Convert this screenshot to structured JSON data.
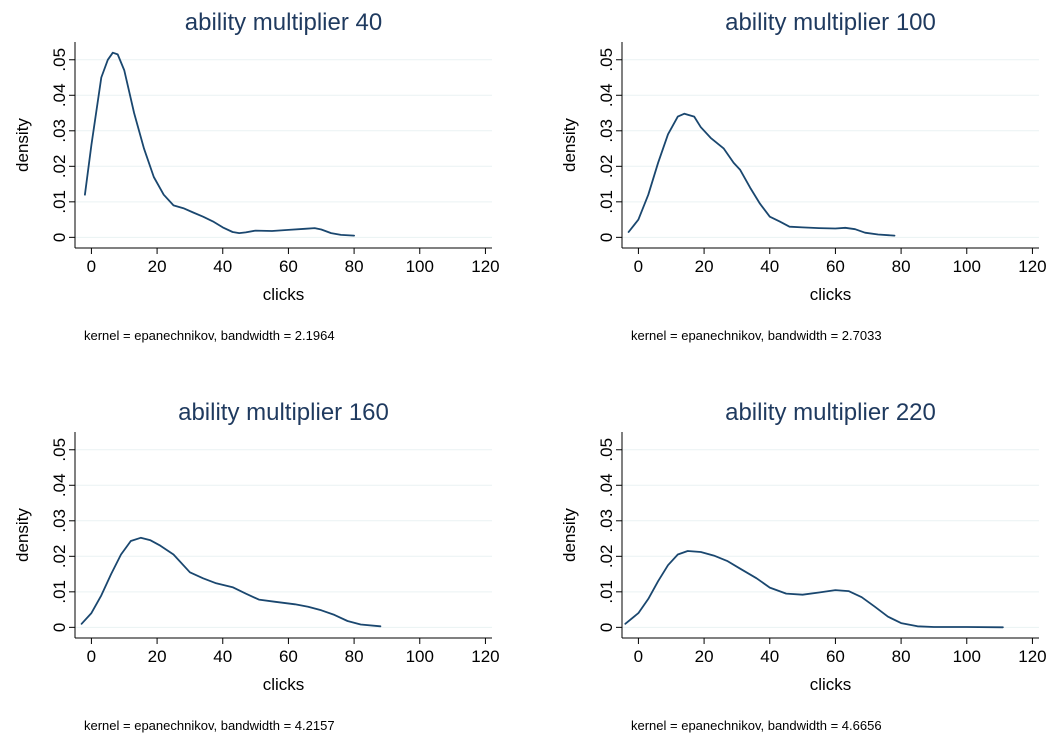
{
  "line_color": "#1a476f",
  "title_color": "#1f3a5f",
  "grid_color": "#eaf2f3",
  "chart_data": [
    {
      "type": "line",
      "title": "ability multiplier 40",
      "xlabel": "clicks",
      "ylabel": "density",
      "note": "kernel = epanechnikov, bandwidth = 2.1964",
      "xlim": [
        -5,
        122
      ],
      "ylim": [
        -0.003,
        0.055
      ],
      "xticks": [
        0,
        20,
        40,
        60,
        80,
        100,
        120
      ],
      "xtick_labels": [
        "0",
        "20",
        "40",
        "60",
        "80",
        "100",
        "120"
      ],
      "yticks": [
        0,
        0.01,
        0.02,
        0.03,
        0.04,
        0.05
      ],
      "ytick_labels": [
        "0",
        ".01",
        ".02",
        ".03",
        ".04",
        ".05"
      ],
      "grid": true,
      "series": [
        {
          "x": [
            -2,
            0,
            3,
            5,
            6.5,
            8,
            10,
            13,
            16,
            19,
            22,
            25,
            28,
            31,
            34,
            37,
            40,
            43,
            45,
            47,
            50,
            55,
            60,
            65,
            68,
            70,
            73,
            76,
            80
          ],
          "y": [
            0.012,
            0.026,
            0.045,
            0.05,
            0.052,
            0.0515,
            0.047,
            0.035,
            0.025,
            0.017,
            0.012,
            0.009,
            0.0082,
            0.007,
            0.0058,
            0.0045,
            0.0028,
            0.0015,
            0.0012,
            0.0014,
            0.0019,
            0.0018,
            0.0021,
            0.0024,
            0.0026,
            0.0022,
            0.0012,
            0.0007,
            0.0005
          ]
        }
      ]
    },
    {
      "type": "line",
      "title": "ability multiplier 100",
      "xlabel": "clicks",
      "ylabel": "density",
      "note": "kernel = epanechnikov, bandwidth = 2.7033",
      "xlim": [
        -5,
        122
      ],
      "ylim": [
        -0.003,
        0.055
      ],
      "xticks": [
        0,
        20,
        40,
        60,
        80,
        100,
        120
      ],
      "xtick_labels": [
        "0",
        "20",
        "40",
        "60",
        "80",
        "100",
        "120"
      ],
      "yticks": [
        0,
        0.01,
        0.02,
        0.03,
        0.04,
        0.05
      ],
      "ytick_labels": [
        "0",
        ".01",
        ".02",
        ".03",
        ".04",
        ".05"
      ],
      "grid": true,
      "series": [
        {
          "x": [
            -3,
            0,
            3,
            6,
            9,
            12,
            14,
            17,
            19,
            22,
            26,
            29,
            31,
            34,
            37,
            40,
            43,
            46,
            50,
            55,
            60,
            63,
            66,
            69,
            73,
            78
          ],
          "y": [
            0.0015,
            0.005,
            0.012,
            0.021,
            0.029,
            0.034,
            0.0348,
            0.034,
            0.031,
            0.028,
            0.025,
            0.021,
            0.019,
            0.014,
            0.0095,
            0.0058,
            0.0045,
            0.003,
            0.0028,
            0.0026,
            0.0025,
            0.0027,
            0.0023,
            0.0013,
            0.0008,
            0.0005
          ]
        }
      ]
    },
    {
      "type": "line",
      "title": "ability multiplier 160",
      "xlabel": "clicks",
      "ylabel": "density",
      "note": "kernel = epanechnikov, bandwidth = 4.2157",
      "xlim": [
        -5,
        122
      ],
      "ylim": [
        -0.003,
        0.055
      ],
      "xticks": [
        0,
        20,
        40,
        60,
        80,
        100,
        120
      ],
      "xtick_labels": [
        "0",
        "20",
        "40",
        "60",
        "80",
        "100",
        "120"
      ],
      "yticks": [
        0,
        0.01,
        0.02,
        0.03,
        0.04,
        0.05
      ],
      "ytick_labels": [
        "0",
        ".01",
        ".02",
        ".03",
        ".04",
        ".05"
      ],
      "grid": true,
      "series": [
        {
          "x": [
            -3,
            0,
            3,
            6,
            9,
            12,
            15,
            18,
            21,
            25,
            30,
            34,
            38,
            43,
            47,
            51,
            56,
            62,
            66,
            70,
            74,
            78,
            82,
            88
          ],
          "y": [
            0.001,
            0.004,
            0.009,
            0.015,
            0.0205,
            0.0243,
            0.0252,
            0.0245,
            0.023,
            0.0205,
            0.0155,
            0.0138,
            0.0124,
            0.0113,
            0.0095,
            0.0078,
            0.0072,
            0.0065,
            0.0058,
            0.0048,
            0.0035,
            0.0018,
            0.0008,
            0.0003
          ]
        }
      ]
    },
    {
      "type": "line",
      "title": "ability multiplier 220",
      "xlabel": "clicks",
      "ylabel": "density",
      "note": "kernel = epanechnikov, bandwidth = 4.6656",
      "xlim": [
        -5,
        122
      ],
      "ylim": [
        -0.003,
        0.055
      ],
      "xticks": [
        0,
        20,
        40,
        60,
        80,
        100,
        120
      ],
      "xtick_labels": [
        "0",
        "20",
        "40",
        "60",
        "80",
        "100",
        "120"
      ],
      "yticks": [
        0,
        0.01,
        0.02,
        0.03,
        0.04,
        0.05
      ],
      "ytick_labels": [
        "0",
        ".01",
        ".02",
        ".03",
        ".04",
        ".05"
      ],
      "grid": true,
      "series": [
        {
          "x": [
            -4,
            0,
            3,
            6,
            9,
            12,
            15,
            19,
            23,
            27,
            31,
            36,
            40,
            45,
            50,
            55,
            60,
            64,
            68,
            72,
            76,
            80,
            85,
            90,
            100,
            111
          ],
          "y": [
            0.001,
            0.004,
            0.008,
            0.013,
            0.0175,
            0.0205,
            0.0215,
            0.0212,
            0.0202,
            0.0187,
            0.0165,
            0.0138,
            0.0112,
            0.0095,
            0.0092,
            0.0098,
            0.0105,
            0.0102,
            0.0085,
            0.0058,
            0.003,
            0.0012,
            0.0003,
            0.0001,
            0.0001,
            0.0
          ]
        }
      ]
    }
  ]
}
